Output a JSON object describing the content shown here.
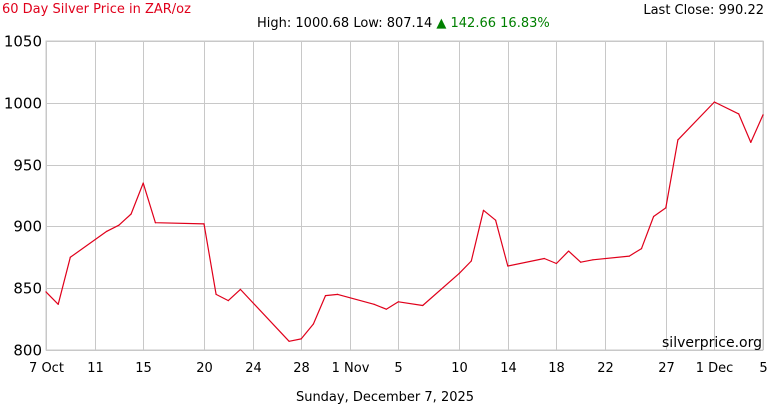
{
  "header": {
    "title": "60 Day Silver Price in ZAR/oz",
    "last_close_label": "Last Close:",
    "last_close_value": "990.22",
    "high_label": "High:",
    "high_value": "1000.68",
    "low_label": "Low:",
    "low_value": "807.14",
    "change_arrow": "▲",
    "change_value": "142.66",
    "change_pct": "16.83%"
  },
  "footer": {
    "date": "Sunday, December 7, 2025"
  },
  "watermark": "silverprice.org",
  "colors": {
    "line": "#e0001b",
    "title": "#e0001b",
    "change": "#008000",
    "grid": "#c8c8c8"
  },
  "chart_data": {
    "type": "line",
    "title": "60 Day Silver Price in ZAR/oz",
    "xlabel": "",
    "ylabel": "",
    "ylim": [
      800,
      1050
    ],
    "xlim": [
      "2025-10-07",
      "2025-12-05"
    ],
    "grid": true,
    "yticks": [
      800,
      850,
      900,
      950,
      1000,
      1050
    ],
    "xticks": [
      {
        "date": "2025-10-07",
        "label": "7 Oct"
      },
      {
        "date": "2025-10-11",
        "label": "11"
      },
      {
        "date": "2025-10-15",
        "label": "15"
      },
      {
        "date": "2025-10-20",
        "label": "20"
      },
      {
        "date": "2025-10-24",
        "label": "24"
      },
      {
        "date": "2025-10-28",
        "label": "28"
      },
      {
        "date": "2025-11-01",
        "label": "1 Nov"
      },
      {
        "date": "2025-11-05",
        "label": "5"
      },
      {
        "date": "2025-11-10",
        "label": "10"
      },
      {
        "date": "2025-11-14",
        "label": "14"
      },
      {
        "date": "2025-11-18",
        "label": "18"
      },
      {
        "date": "2025-11-22",
        "label": "22"
      },
      {
        "date": "2025-11-27",
        "label": "27"
      },
      {
        "date": "2025-12-01",
        "label": "1 Dec"
      },
      {
        "date": "2025-12-05",
        "label": "5"
      }
    ],
    "series": [
      {
        "points": [
          {
            "x": "2025-10-07",
            "y": 847
          },
          {
            "x": "2025-10-08",
            "y": 837
          },
          {
            "x": "2025-10-09",
            "y": 875
          },
          {
            "x": "2025-10-12",
            "y": 896
          },
          {
            "x": "2025-10-13",
            "y": 901
          },
          {
            "x": "2025-10-14",
            "y": 910
          },
          {
            "x": "2025-10-15",
            "y": 935
          },
          {
            "x": "2025-10-16",
            "y": 903
          },
          {
            "x": "2025-10-20",
            "y": 902
          },
          {
            "x": "2025-10-21",
            "y": 845
          },
          {
            "x": "2025-10-22",
            "y": 840
          },
          {
            "x": "2025-10-23",
            "y": 849
          },
          {
            "x": "2025-10-27",
            "y": 807
          },
          {
            "x": "2025-10-28",
            "y": 809
          },
          {
            "x": "2025-10-29",
            "y": 821
          },
          {
            "x": "2025-10-30",
            "y": 844
          },
          {
            "x": "2025-10-31",
            "y": 845
          },
          {
            "x": "2025-11-03",
            "y": 837
          },
          {
            "x": "2025-11-04",
            "y": 833
          },
          {
            "x": "2025-11-05",
            "y": 839
          },
          {
            "x": "2025-11-07",
            "y": 836
          },
          {
            "x": "2025-11-10",
            "y": 862
          },
          {
            "x": "2025-11-11",
            "y": 872
          },
          {
            "x": "2025-11-12",
            "y": 913
          },
          {
            "x": "2025-11-13",
            "y": 905
          },
          {
            "x": "2025-11-14",
            "y": 868
          },
          {
            "x": "2025-11-17",
            "y": 874
          },
          {
            "x": "2025-11-18",
            "y": 870
          },
          {
            "x": "2025-11-19",
            "y": 880
          },
          {
            "x": "2025-11-20",
            "y": 871
          },
          {
            "x": "2025-11-21",
            "y": 873
          },
          {
            "x": "2025-11-24",
            "y": 876
          },
          {
            "x": "2025-11-25",
            "y": 882
          },
          {
            "x": "2025-11-26",
            "y": 908
          },
          {
            "x": "2025-11-27",
            "y": 915
          },
          {
            "x": "2025-11-28",
            "y": 970
          },
          {
            "x": "2025-12-01",
            "y": 1000.68
          },
          {
            "x": "2025-12-03",
            "y": 991
          },
          {
            "x": "2025-12-04",
            "y": 968
          },
          {
            "x": "2025-12-05",
            "y": 990.22
          }
        ]
      }
    ]
  }
}
